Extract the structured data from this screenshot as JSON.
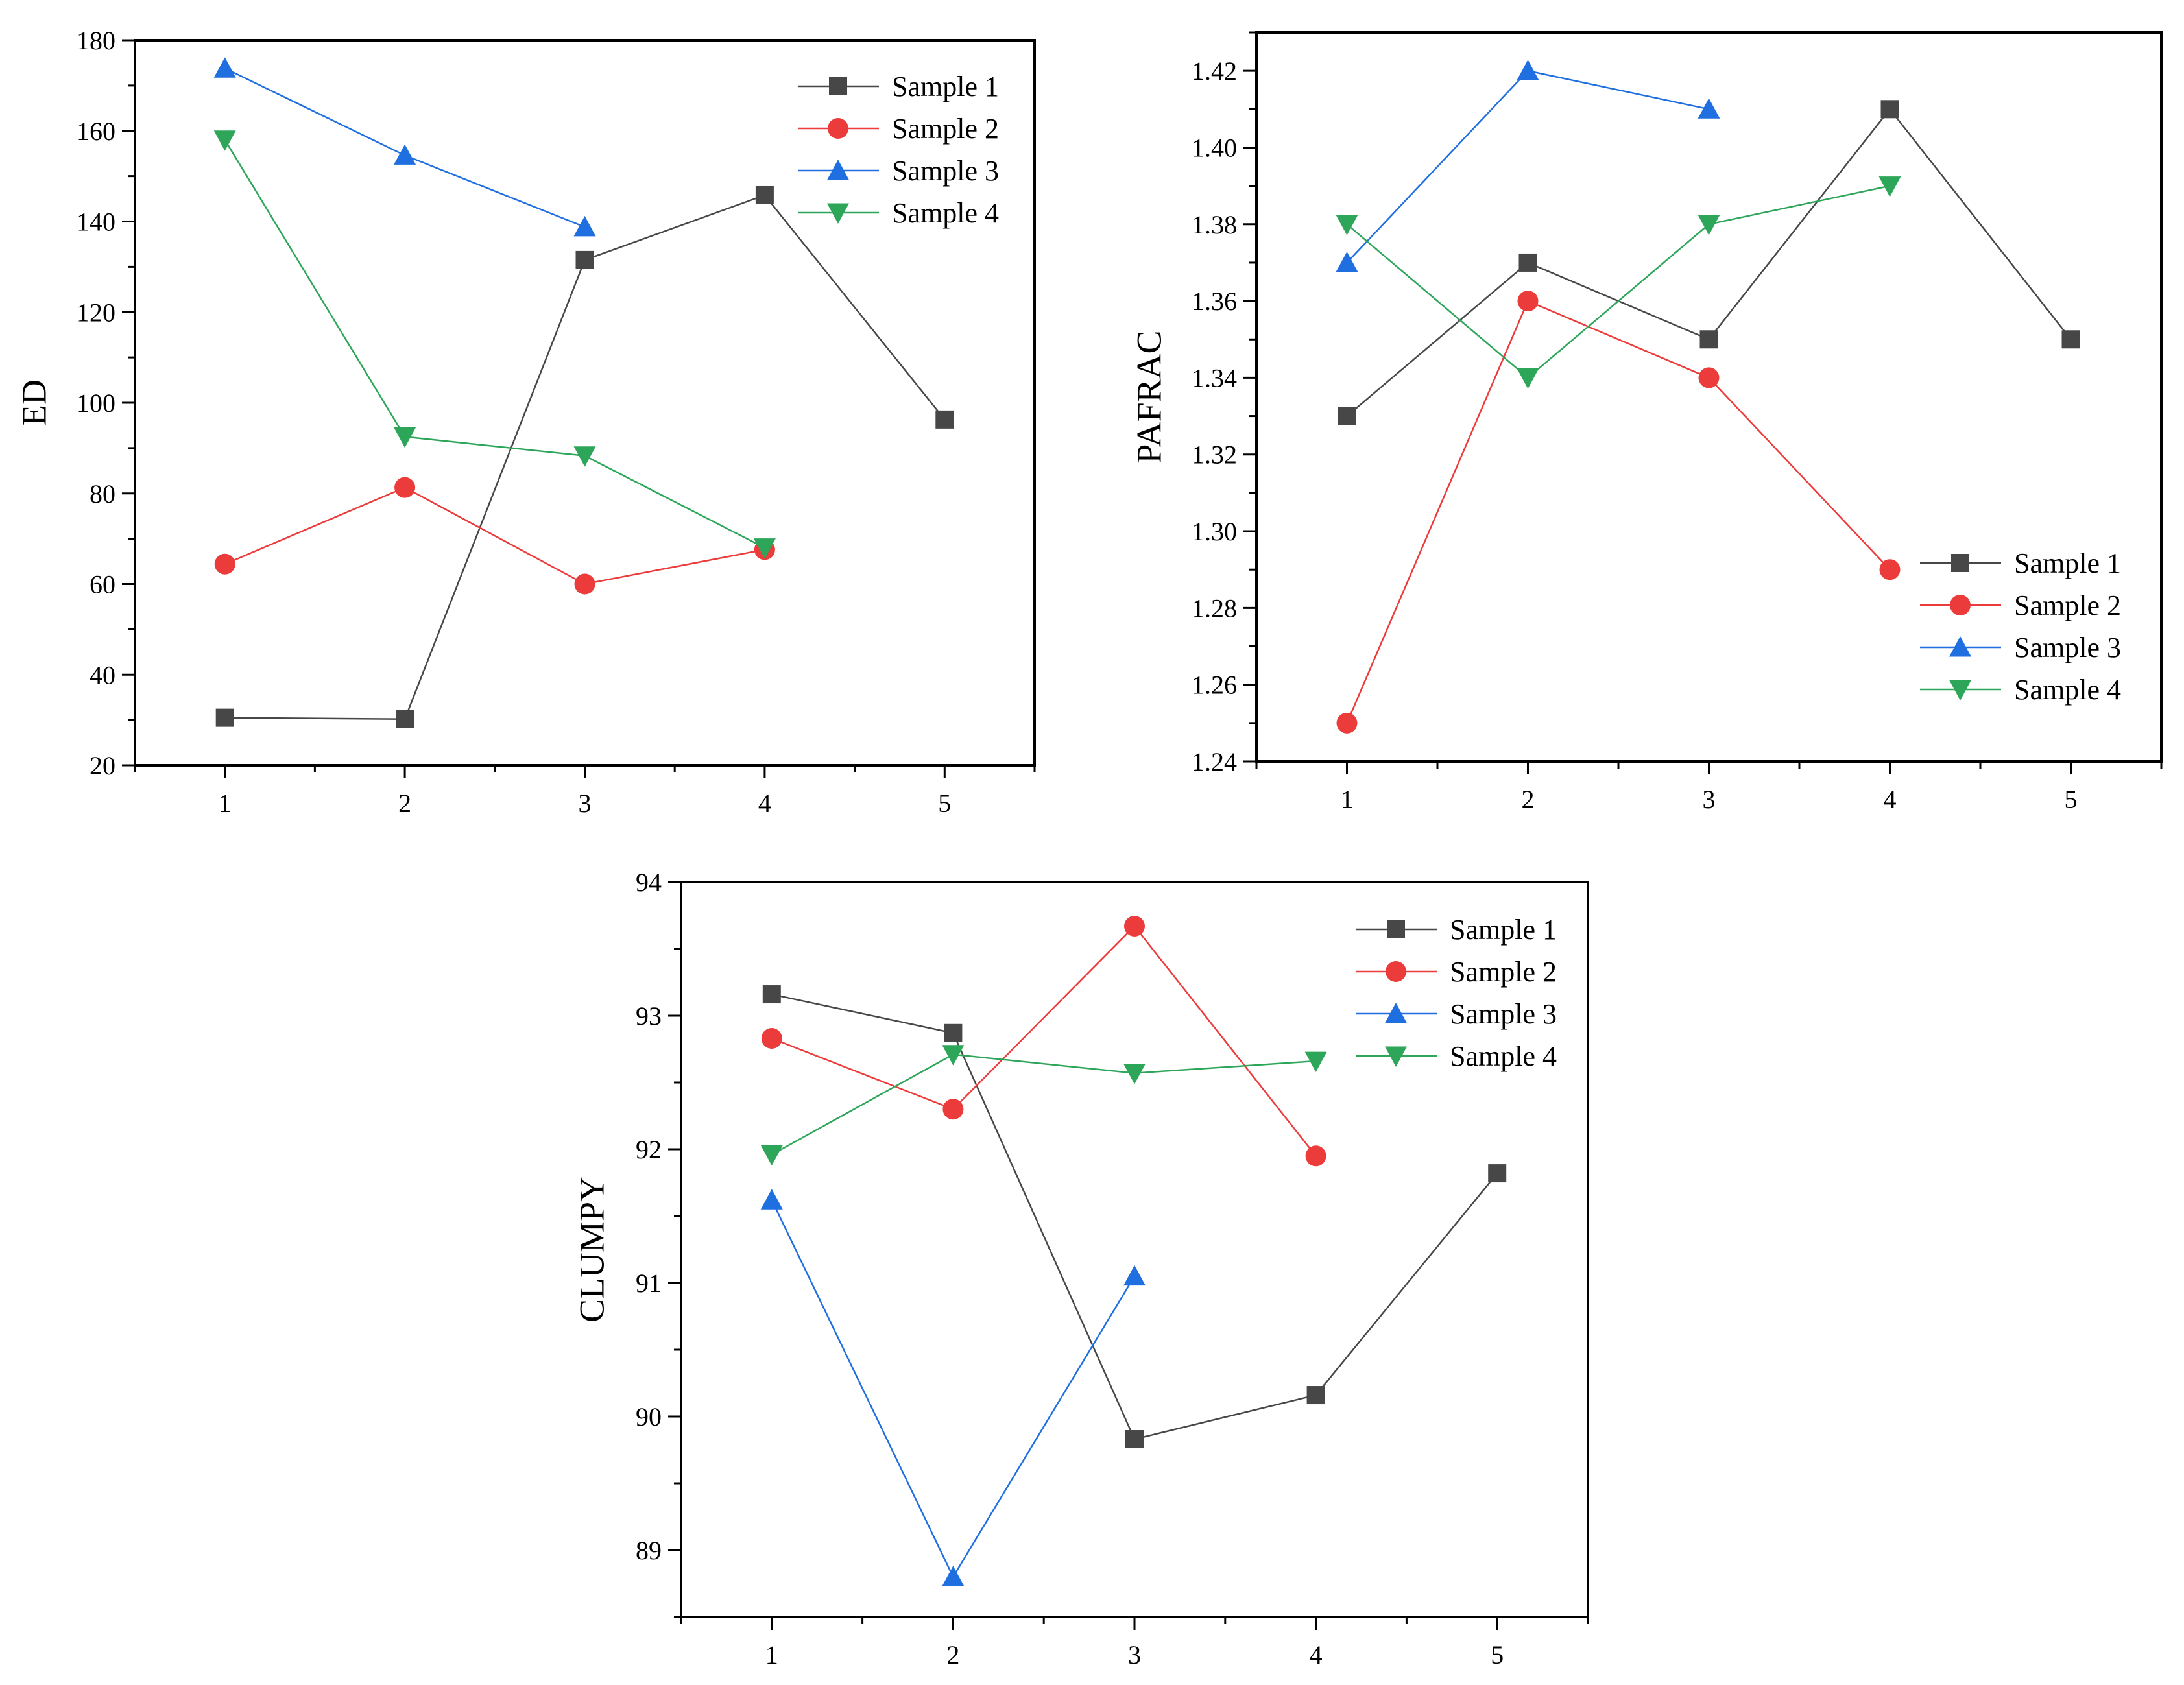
{
  "colors": {
    "Sample 1": "#474747",
    "Sample 2": "#ec3b3b",
    "Sample 3": "#1f6fe0",
    "Sample 4": "#2ea65a"
  },
  "markers": {
    "Sample 1": "square",
    "Sample 2": "circle",
    "Sample 3": "triangle-up",
    "Sample 4": "triangle-down"
  },
  "chart_data": [
    {
      "type": "line",
      "ylabel": "ED",
      "xlabel": "",
      "x": [
        1,
        2,
        3,
        4,
        5
      ],
      "xticks": [
        "1",
        "2",
        "3",
        "4",
        "5"
      ],
      "xlim": [
        0.5,
        5.5
      ],
      "ylim": [
        20,
        180
      ],
      "yticks": [
        "20",
        "40",
        "60",
        "80",
        "100",
        "120",
        "140",
        "160",
        "180"
      ],
      "legend": [
        "Sample 1",
        "Sample 2",
        "Sample 3",
        "Sample 4"
      ],
      "legend_position": "top-right",
      "series": [
        {
          "name": "Sample 1",
          "values": [
            30.5,
            30.2,
            131.5,
            145.8,
            96.3
          ]
        },
        {
          "name": "Sample 2",
          "values": [
            64.4,
            81.3,
            60.0,
            67.6,
            null
          ]
        },
        {
          "name": "Sample 3",
          "values": [
            173.8,
            154.6,
            138.8,
            null,
            null
          ]
        },
        {
          "name": "Sample 4",
          "values": [
            158.0,
            92.5,
            88.3,
            68.0,
            null
          ]
        }
      ]
    },
    {
      "type": "line",
      "ylabel": "PAFRAC",
      "xlabel": "",
      "x": [
        1,
        2,
        3,
        4,
        5
      ],
      "xticks": [
        "1",
        "2",
        "3",
        "4",
        "5"
      ],
      "xlim": [
        0.5,
        5.5
      ],
      "ylim": [
        1.24,
        1.43
      ],
      "yticks": [
        "1.24",
        "1.26",
        "1.28",
        "1.30",
        "1.32",
        "1.34",
        "1.36",
        "1.38",
        "1.40",
        "1.42"
      ],
      "legend": [
        "Sample 1",
        "Sample 2",
        "Sample 3",
        "Sample 4"
      ],
      "legend_position": "bottom-right",
      "series": [
        {
          "name": "Sample 1",
          "values": [
            1.33,
            1.37,
            1.35,
            1.41,
            1.35
          ]
        },
        {
          "name": "Sample 2",
          "values": [
            1.25,
            1.36,
            1.34,
            1.29,
            null
          ]
        },
        {
          "name": "Sample 3",
          "values": [
            1.37,
            1.42,
            1.41,
            null,
            null
          ]
        },
        {
          "name": "Sample 4",
          "values": [
            1.38,
            1.34,
            1.38,
            1.39,
            null
          ]
        }
      ]
    },
    {
      "type": "line",
      "ylabel": "CLUMPY",
      "xlabel": "",
      "x": [
        1,
        2,
        3,
        4,
        5
      ],
      "xticks": [
        "1",
        "2",
        "3",
        "4",
        "5"
      ],
      "xlim": [
        0.5,
        5.5
      ],
      "ylim": [
        88.5,
        94
      ],
      "yticks": [
        "89",
        "90",
        "91",
        "92",
        "93",
        "94"
      ],
      "legend": [
        "Sample 1",
        "Sample 2",
        "Sample 3",
        "Sample 4"
      ],
      "legend_position": "top-right",
      "series": [
        {
          "name": "Sample 1",
          "values": [
            93.16,
            92.87,
            89.83,
            90.16,
            91.82
          ]
        },
        {
          "name": "Sample 2",
          "values": [
            92.83,
            92.3,
            93.67,
            91.95,
            null
          ]
        },
        {
          "name": "Sample 3",
          "values": [
            91.62,
            88.8,
            91.05,
            null,
            null
          ]
        },
        {
          "name": "Sample 4",
          "values": [
            91.96,
            92.71,
            92.57,
            92.66,
            null
          ]
        }
      ]
    }
  ]
}
